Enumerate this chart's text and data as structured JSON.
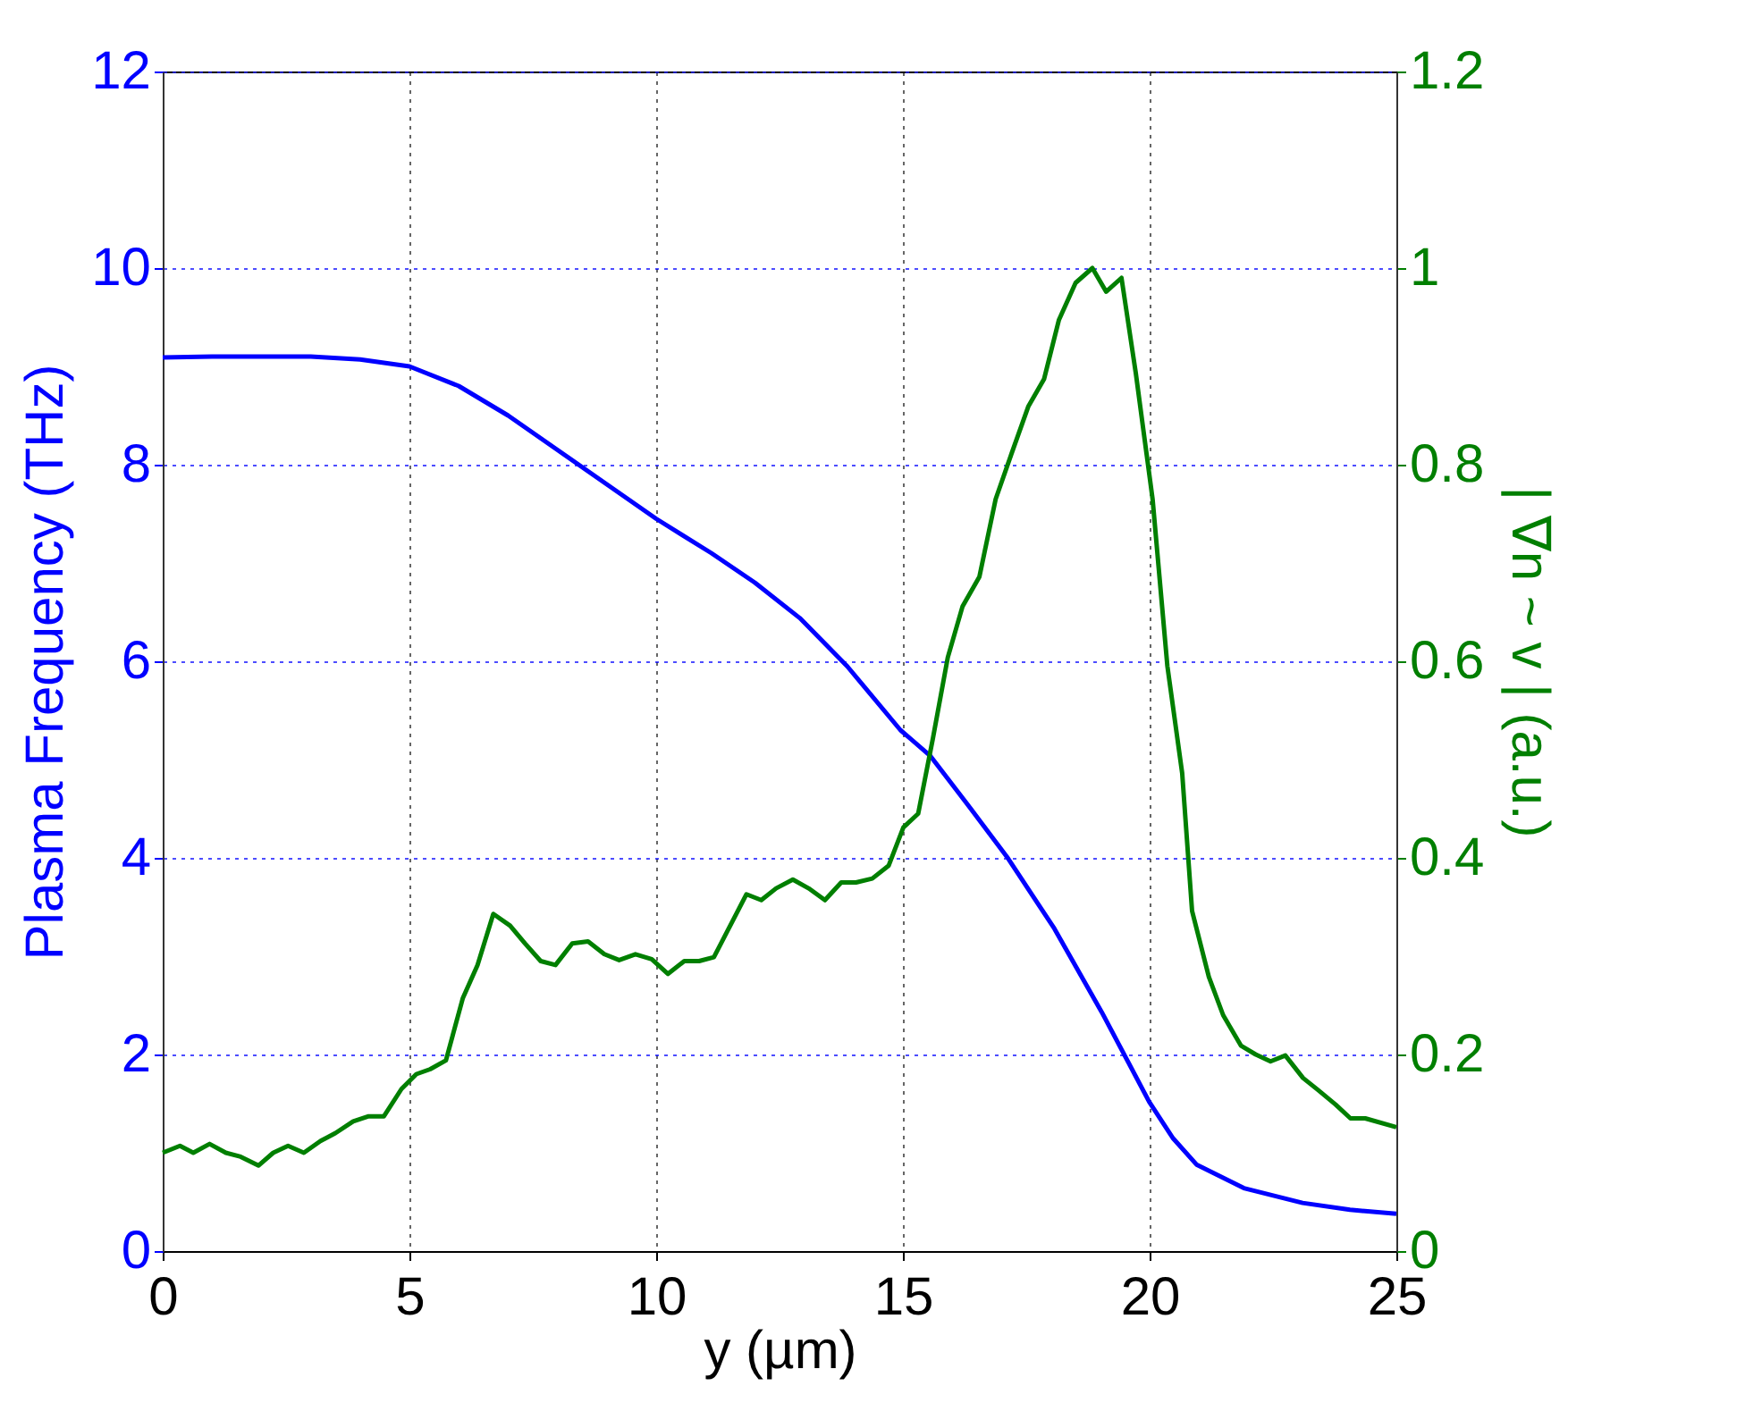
{
  "chart_data": {
    "type": "line",
    "xlabel": "y (µm)",
    "ylabel": "Plasma Frequency (THz)",
    "y2label": "| ∇n ~ v | (a.u.)",
    "xlim": [
      0,
      25
    ],
    "xticks": [
      0,
      5,
      10,
      15,
      20,
      25
    ],
    "ylim": [
      0,
      12
    ],
    "yticks": [
      0,
      2,
      4,
      6,
      8,
      10,
      12
    ],
    "y2lim": [
      0,
      1.2
    ],
    "y2ticks": [
      0,
      0.2,
      0.4,
      0.6,
      0.8,
      1,
      1.2
    ],
    "grid": true,
    "marker": "none",
    "line_style": "solid",
    "series": [
      {
        "color": "#0000ff",
        "x": [
          0,
          1,
          2,
          3,
          4,
          5,
          6,
          7,
          8,
          9,
          10,
          11.12,
          12,
          12.91,
          13.87,
          14.95,
          15.55,
          16.3,
          17.11,
          18.07,
          19.03,
          19.99,
          20.47,
          20.95,
          21.91,
          23.1,
          24.06,
          25
        ],
        "values": [
          9.09,
          9.1,
          9.1,
          9.1,
          9.07,
          9.0,
          8.8,
          8.5,
          8.15,
          7.8,
          7.45,
          7.1,
          6.8,
          6.44,
          5.95,
          5.3,
          5.04,
          4.55,
          4.01,
          3.28,
          2.43,
          1.52,
          1.15,
          0.88,
          0.64,
          0.49,
          0.42,
          0.38
        ]
      },
      {
        "color": "#007f00",
        "axis": "y2",
        "x": [
          0,
          0.35,
          0.62,
          0.95,
          1.28,
          1.58,
          1.94,
          2.24,
          2.54,
          2.86,
          3.2,
          3.5,
          3.86,
          4.16,
          4.48,
          4.84,
          5.14,
          5.42,
          5.74,
          6.08,
          6.38,
          6.7,
          7.04,
          7.34,
          7.66,
          7.96,
          8.3,
          8.62,
          8.95,
          9.25,
          9.58,
          9.91,
          10.24,
          10.57,
          10.87,
          11.17,
          11.5,
          11.83,
          12.13,
          12.43,
          12.77,
          13.09,
          13.42,
          13.75,
          14.05,
          14.38,
          14.71,
          15.01,
          15.31,
          15.61,
          15.91,
          16.21,
          16.55,
          16.88,
          17.2,
          17.54,
          17.86,
          18.16,
          18.5,
          18.84,
          19.12,
          19.43,
          19.72,
          20.06,
          20.36,
          20.66,
          20.86,
          21.2,
          21.49,
          21.85,
          22.15,
          22.45,
          22.75,
          23.11,
          23.41,
          23.77,
          24.07,
          24.37,
          25
        ],
        "values": [
          0.1,
          0.107,
          0.1,
          0.109,
          0.1,
          0.096,
          0.087,
          0.1,
          0.107,
          0.1,
          0.112,
          0.12,
          0.132,
          0.137,
          0.137,
          0.165,
          0.18,
          0.185,
          0.194,
          0.257,
          0.291,
          0.343,
          0.331,
          0.313,
          0.295,
          0.291,
          0.313,
          0.315,
          0.302,
          0.296,
          0.302,
          0.297,
          0.282,
          0.295,
          0.295,
          0.299,
          0.331,
          0.363,
          0.357,
          0.369,
          0.378,
          0.369,
          0.357,
          0.375,
          0.375,
          0.379,
          0.392,
          0.431,
          0.445,
          0.522,
          0.604,
          0.656,
          0.686,
          0.765,
          0.811,
          0.859,
          0.887,
          0.947,
          0.985,
          1.0,
          0.976,
          0.99,
          0.893,
          0.765,
          0.595,
          0.486,
          0.346,
          0.279,
          0.24,
          0.209,
          0.2,
          0.193,
          0.199,
          0.176,
          0.164,
          0.149,
          0.135,
          0.135,
          0.126
        ]
      }
    ]
  }
}
